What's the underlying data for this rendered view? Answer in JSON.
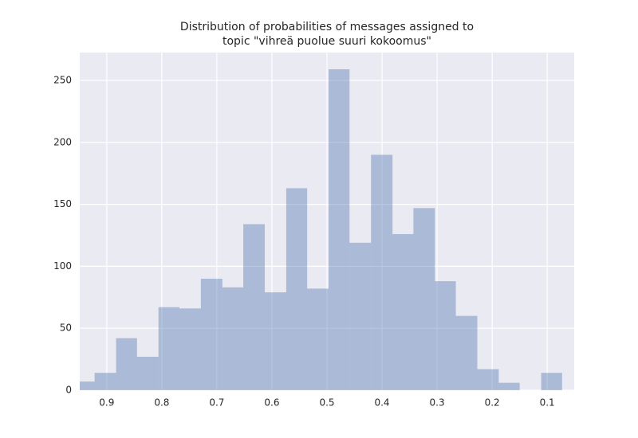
{
  "chart_data": {
    "type": "histogram",
    "title": [
      "Distribution of probabilities of messages assigned to",
      "topic \"vihreä puolue suuri kokoomus\""
    ],
    "bins": [
      0.96,
      0.922,
      0.883,
      0.845,
      0.806,
      0.768,
      0.729,
      0.69,
      0.652,
      0.613,
      0.574,
      0.536,
      0.497,
      0.459,
      0.42,
      0.381,
      0.343,
      0.304,
      0.266,
      0.227,
      0.188,
      0.15,
      0.111,
      0.073
    ],
    "values": [
      7,
      14,
      42,
      27,
      67,
      66,
      90,
      83,
      134,
      79,
      163,
      82,
      259,
      119,
      190,
      126,
      147,
      88,
      60,
      17,
      6,
      0,
      14
    ],
    "color": "#4c72b0",
    "xlim": [
      0.949,
      0.051
    ],
    "xticks": [
      0.9,
      0.8,
      0.7,
      0.6,
      0.5,
      0.4,
      0.3,
      0.2,
      0.1
    ],
    "ylim": [
      0,
      272.5
    ],
    "yticks": [
      0,
      50,
      100,
      150,
      200,
      250
    ],
    "grid": true
  }
}
